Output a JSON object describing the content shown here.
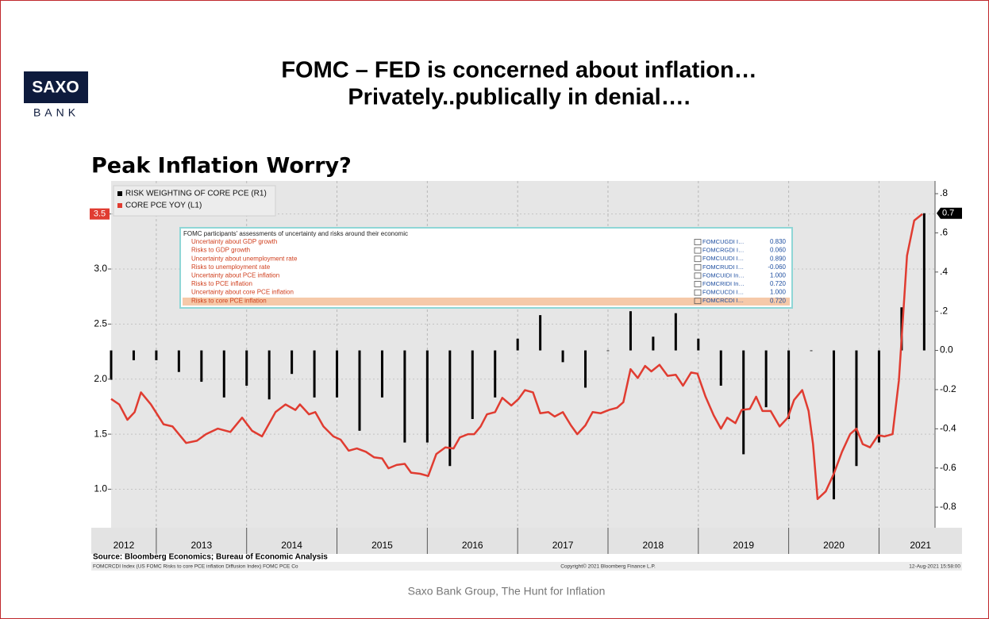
{
  "header": {
    "logo_top": "SAXO",
    "logo_bottom": "BANK",
    "title_lines": [
      "FOMC – FED is concerned about inflation…",
      "Privately..publically in denial…."
    ]
  },
  "chart_data": {
    "type": "combo",
    "title": "Peak Inflation Worry?",
    "legend": "upper left",
    "grid": true,
    "xlim": [
      2012.5,
      2021.62
    ],
    "xticks": [
      2012,
      2013,
      2014,
      2015,
      2016,
      2017,
      2018,
      2019,
      2020,
      2021
    ],
    "ylim": [
      0.65,
      3.8
    ],
    "yticks": [
      {
        "value": 1,
        "label": "1.0"
      },
      1.5,
      {
        "value": 2,
        "label": "2.0"
      },
      2.5,
      {
        "value": 3,
        "label": "3.0"
      },
      3.5
    ],
    "y2lim": [
      -0.905,
      0.865
    ],
    "y2ticks": [
      {
        "value": 0.8,
        "label": ".8"
      },
      {
        "value": 0.6,
        "label": ".6"
      },
      {
        "value": 0.4,
        "label": ".4"
      },
      {
        "value": 0.2,
        "label": ".2"
      },
      {
        "value": 0,
        "label": "0.0"
      },
      -0.2,
      -0.4,
      -0.6,
      -0.8
    ],
    "series": [
      {
        "name": "RISK WEIGHTING OF CORE PCE (R1)",
        "type": "bar",
        "axis": "y2",
        "color": "#000000",
        "x": [
          2012.5,
          2012.75,
          2013,
          2013.25,
          2013.5,
          2013.75,
          2014,
          2014.25,
          2014.5,
          2014.75,
          2015,
          2015.25,
          2015.5,
          2015.75,
          2016,
          2016.25,
          2016.5,
          2016.75,
          2017,
          2017.25,
          2017.5,
          2017.75,
          2018,
          2018.25,
          2018.5,
          2018.75,
          2019,
          2019.25,
          2019.5,
          2019.75,
          2020,
          2020.25,
          2020.5,
          2020.75,
          2021,
          2021.25,
          2021.5
        ],
        "values": [
          -0.15,
          -0.05,
          -0.05,
          -0.11,
          -0.16,
          -0.24,
          -0.18,
          -0.25,
          -0.12,
          -0.24,
          -0.24,
          -0.41,
          -0.24,
          -0.47,
          -0.47,
          -0.59,
          -0.35,
          -0.24,
          0.06,
          0.18,
          -0.06,
          -0.19,
          0,
          0.2,
          0.07,
          0.19,
          0.06,
          -0.18,
          -0.53,
          -0.29,
          -0.35,
          0,
          -0.76,
          -0.59,
          -0.47,
          0.22,
          0.7
        ]
      },
      {
        "name": "CORE PCE YOY (L1)",
        "type": "line",
        "color": "#e03c31",
        "x": [
          2012.5,
          2012.59,
          2012.68,
          2012.76,
          2012.83,
          2012.94,
          2013.08,
          2013.18,
          2013.33,
          2013.45,
          2013.55,
          2013.68,
          2013.82,
          2013.95,
          2014.06,
          2014.17,
          2014.32,
          2014.43,
          2014.54,
          2014.59,
          2014.69,
          2014.76,
          2014.85,
          2014.96,
          2015.04,
          2015.13,
          2015.22,
          2015.32,
          2015.41,
          2015.5,
          2015.57,
          2015.66,
          2015.75,
          2015.82,
          2015.92,
          2016.01,
          2016.1,
          2016.2,
          2016.29,
          2016.36,
          2016.45,
          2016.52,
          2016.59,
          2016.66,
          2016.75,
          2016.83,
          2016.93,
          2017.01,
          2017.08,
          2017.17,
          2017.25,
          2017.34,
          2017.41,
          2017.5,
          2017.59,
          2017.66,
          2017.75,
          2017.83,
          2017.92,
          2018.01,
          2018.1,
          2018.17,
          2018.25,
          2018.33,
          2018.41,
          2018.48,
          2018.57,
          2018.66,
          2018.75,
          2018.83,
          2018.92,
          2018.99,
          2019.08,
          2019.17,
          2019.25,
          2019.32,
          2019.41,
          2019.48,
          2019.57,
          2019.64,
          2019.71,
          2019.8,
          2019.9,
          2019.99,
          2020.06,
          2020.15,
          2020.22,
          2020.27,
          2020.32,
          2020.41,
          2020.5,
          2020.59,
          2020.68,
          2020.75,
          2020.82,
          2020.9,
          2020.99,
          2021.06,
          2021.15,
          2021.22,
          2021.31,
          2021.39,
          2021.48
        ],
        "values": [
          1.82,
          1.77,
          1.63,
          1.7,
          1.88,
          1.77,
          1.59,
          1.57,
          1.42,
          1.44,
          1.5,
          1.55,
          1.52,
          1.65,
          1.53,
          1.48,
          1.7,
          1.77,
          1.72,
          1.77,
          1.68,
          1.7,
          1.57,
          1.48,
          1.45,
          1.35,
          1.37,
          1.34,
          1.29,
          1.28,
          1.19,
          1.22,
          1.23,
          1.15,
          1.14,
          1.12,
          1.32,
          1.38,
          1.37,
          1.47,
          1.5,
          1.5,
          1.57,
          1.68,
          1.7,
          1.83,
          1.76,
          1.82,
          1.9,
          1.88,
          1.69,
          1.7,
          1.66,
          1.7,
          1.58,
          1.5,
          1.58,
          1.7,
          1.69,
          1.72,
          1.74,
          1.79,
          2.09,
          2.01,
          2.12,
          2.07,
          2.13,
          2.03,
          2.04,
          1.94,
          2.06,
          2.05,
          1.84,
          1.67,
          1.55,
          1.65,
          1.6,
          1.72,
          1.73,
          1.84,
          1.71,
          1.71,
          1.57,
          1.65,
          1.81,
          1.9,
          1.71,
          1.41,
          0.91,
          0.98,
          1.14,
          1.34,
          1.5,
          1.55,
          1.41,
          1.38,
          1.49,
          1.48,
          1.5,
          1.99,
          3.12,
          3.44,
          3.5
        ]
      }
    ]
  },
  "inset_table": {
    "title": "FOMC participants' assessments of uncertainty and risks around their economic",
    "rows": [
      [
        "Uncertainty about GDP growth",
        "FOMCUGDI I…",
        "0.830"
      ],
      [
        "Risks to GDP growth",
        "FOMCRGDI I…",
        "0.060"
      ],
      [
        "Uncertainty about unemployment rate",
        "FOMCUUDI I…",
        "0.890"
      ],
      [
        "Risks to unemployment rate",
        "FOMCRUDI I…",
        "-0.060"
      ],
      [
        "Uncertainty about PCE inflation",
        "FOMCUIDI In…",
        "1.000"
      ],
      [
        "Risks to PCE inflation",
        "FOMCRIDI In…",
        "0.720"
      ],
      [
        "Uncertainty about core PCE inflation",
        "FOMCUCDI I…",
        "1.000"
      ],
      [
        "Risks to core PCE inflation",
        "FOMCRCDI I…",
        "0.720"
      ]
    ]
  },
  "footer": {
    "source": "Source: Bloomberg Economics; Bureau of Economic Analysis",
    "index_note": "FOMCRCDI Index (US FOMC Risks to core PCE inflation Diffusion Index) FOMC PCE Co",
    "copyright": "Copyright© 2021 Bloomberg Finance L.P.",
    "timestamp": "12-Aug-2021 15:58:00",
    "caption": "Saxo Bank Group, The Hunt for Inflation"
  }
}
